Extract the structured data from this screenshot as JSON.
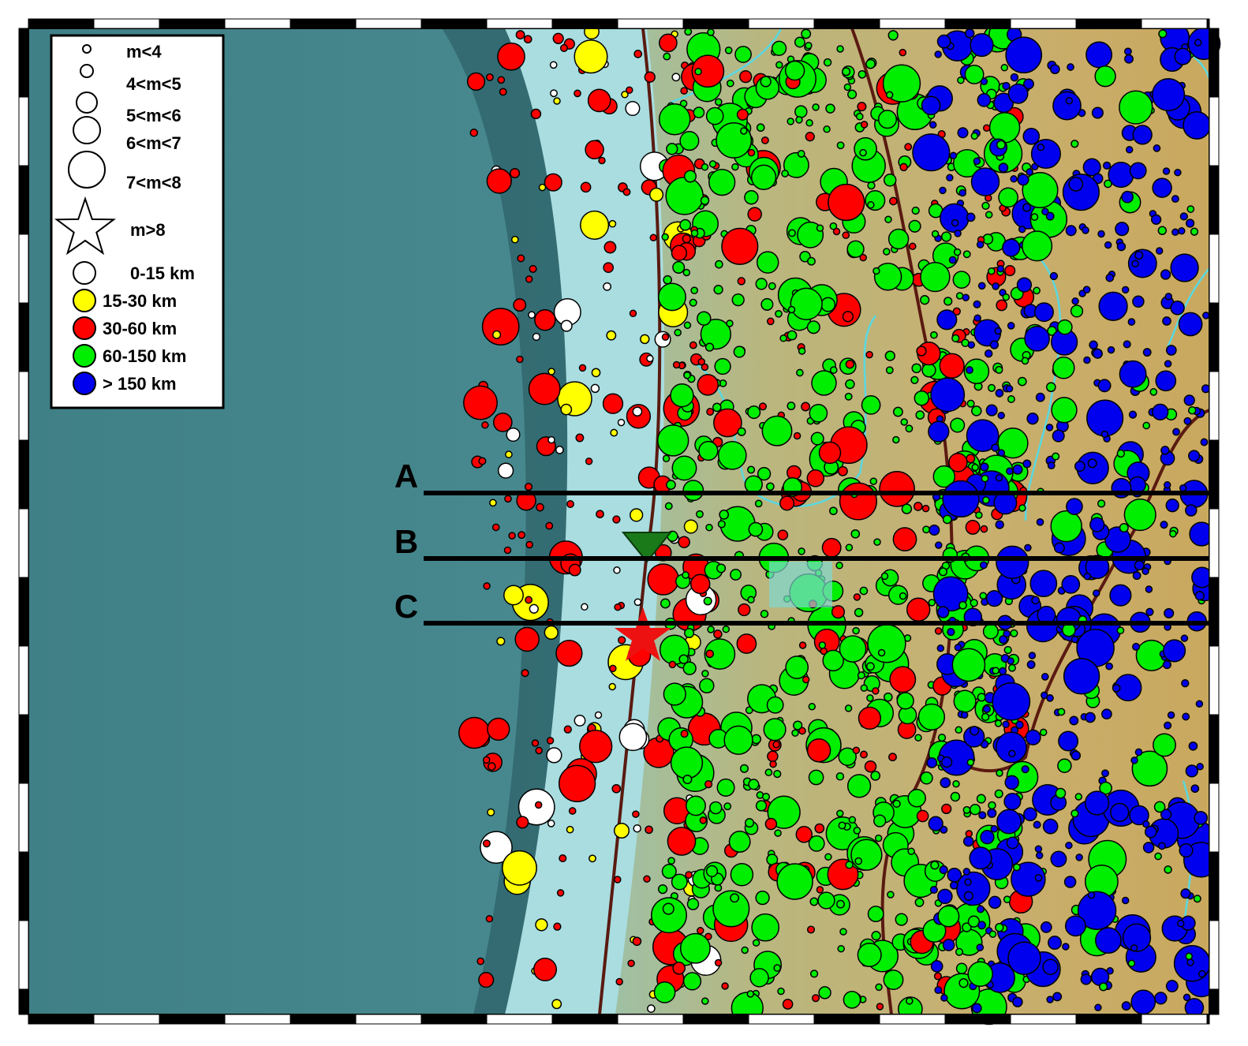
{
  "legend": {
    "magnitude": [
      "m<4",
      "4<m<5",
      "5<m<6",
      "6<m<7",
      "7<m<8",
      "m>8"
    ],
    "depth": [
      {
        "label": "0-15 km",
        "color": "#ffffff"
      },
      {
        "label": "15-30 km",
        "color": "#ffff00"
      },
      {
        "label": "30-60 km",
        "color": "#ff0000"
      },
      {
        "label": "60-150 km",
        "color": "#00ee00"
      },
      {
        "label": "> 150 km",
        "color": "#0000ee"
      }
    ]
  },
  "profiles": [
    "A",
    "B",
    "C"
  ]
}
